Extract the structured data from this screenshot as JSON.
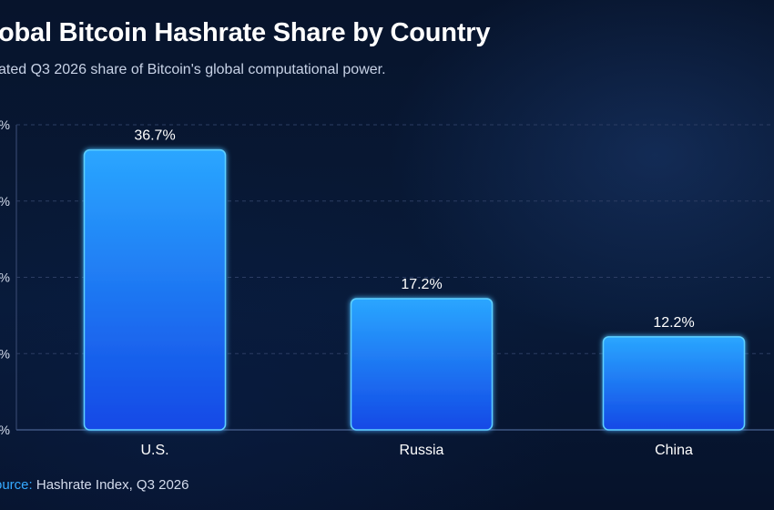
{
  "title": "obal Bitcoin Hashrate Share by Country",
  "subtitle": "ated Q3 2026 share of Bitcoin's global computational power.",
  "source": {
    "label": "ource:",
    "text": "Hashrate Index, Q3 2026"
  },
  "colors": {
    "bar_top": "#2aa6ff",
    "bar_bottom": "#1349e6",
    "bar_edge": "#5fd0ff",
    "grid": "#2c3d63",
    "background": "#07152e"
  },
  "chart_data": {
    "type": "bar",
    "title": "obal Bitcoin Hashrate Share by Country",
    "subtitle": "ated Q3 2026 share of Bitcoin's global computational power.",
    "categories": [
      "U.S.",
      "Russia",
      "China"
    ],
    "values": [
      36.7,
      17.2,
      12.2
    ],
    "data_labels": [
      "36.7%",
      "17.2%",
      "12.2%"
    ],
    "ytick_labels": [
      "%",
      "%",
      "%",
      "%",
      "%"
    ],
    "ylim": [
      0,
      40
    ],
    "grid": true,
    "legend": "none"
  }
}
